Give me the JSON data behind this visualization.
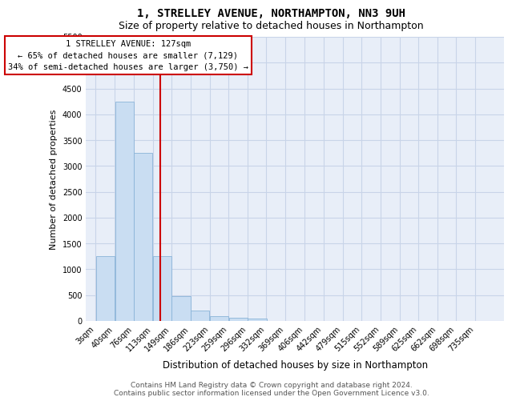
{
  "title": "1, STRELLEY AVENUE, NORTHAMPTON, NN3 9UH",
  "subtitle": "Size of property relative to detached houses in Northampton",
  "xlabel": "Distribution of detached houses by size in Northampton",
  "ylabel": "Number of detached properties",
  "footer_line1": "Contains HM Land Registry data © Crown copyright and database right 2024.",
  "footer_line2": "Contains public sector information licensed under the Open Government Licence v3.0.",
  "annotation_line1": "1 STRELLEY AVENUE: 127sqm",
  "annotation_line2": "← 65% of detached houses are smaller (7,129)",
  "annotation_line3": "34% of semi-detached houses are larger (3,750) →",
  "property_size": 127,
  "bar_color": "#c9ddf2",
  "bar_edge_color": "#8ab4d8",
  "redline_color": "#cc0000",
  "annotation_box_edge": "#cc0000",
  "annotation_box_face": "#ffffff",
  "grid_color": "#c8d4e8",
  "background_color": "#e8eef8",
  "categories": [
    "3sqm",
    "40sqm",
    "76sqm",
    "113sqm",
    "149sqm",
    "186sqm",
    "223sqm",
    "259sqm",
    "296sqm",
    "332sqm",
    "369sqm",
    "406sqm",
    "442sqm",
    "479sqm",
    "515sqm",
    "552sqm",
    "589sqm",
    "625sqm",
    "662sqm",
    "698sqm",
    "735sqm"
  ],
  "bin_starts": [
    3,
    40,
    76,
    113,
    149,
    186,
    223,
    259,
    296,
    332,
    369,
    406,
    442,
    479,
    515,
    552,
    589,
    625,
    662,
    698,
    735
  ],
  "values": [
    1250,
    4250,
    3250,
    1250,
    480,
    200,
    90,
    60,
    50,
    0,
    0,
    0,
    0,
    0,
    0,
    0,
    0,
    0,
    0,
    0,
    0
  ],
  "ylim_max": 5500,
  "ytick_step": 500,
  "title_fontsize": 10,
  "subtitle_fontsize": 9,
  "ylabel_fontsize": 8,
  "xlabel_fontsize": 8.5,
  "tick_fontsize": 7,
  "annot_fontsize": 7.5,
  "footer_fontsize": 6.5
}
